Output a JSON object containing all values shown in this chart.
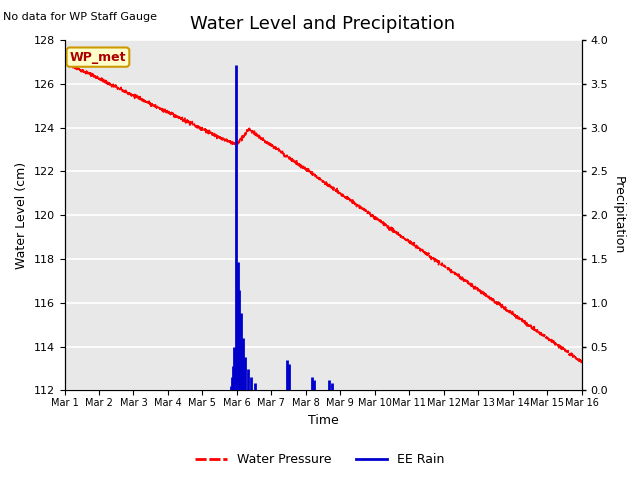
{
  "title": "Water Level and Precipitation",
  "subtitle": "No data for WP Staff Gauge",
  "xlabel": "Time",
  "ylabel_left": "Water Level (cm)",
  "ylabel_right": "Precipitation",
  "legend_label_box": "WP_met",
  "legend_label_red": "Water Pressure",
  "legend_label_blue": "EE Rain",
  "ylim_left": [
    112,
    128
  ],
  "ylim_right": [
    0.0,
    4.0
  ],
  "yticks_left": [
    112,
    114,
    116,
    118,
    120,
    122,
    124,
    126,
    128
  ],
  "yticks_right": [
    0.0,
    0.5,
    1.0,
    1.5,
    2.0,
    2.5,
    3.0,
    3.5,
    4.0
  ],
  "background_color": "#e8e8e8",
  "grid_color": "#ffffff",
  "water_pressure_color": "#ff0000",
  "rain_color": "#0000cc",
  "title_fontsize": 13,
  "label_fontsize": 9,
  "tick_fontsize": 8,
  "xtick_labels": [
    "Mar 1",
    "Mar 2",
    "Mar 3",
    "Mar 4",
    "Mar 5",
    "Mar 6",
    "Mar 7",
    "Mar 8",
    "Mar 9",
    "Mar 10",
    "Mar 11",
    "Mar 12",
    "Mar 13",
    "Mar 14",
    "Mar 15",
    "Mar 16"
  ],
  "rain_times": [
    4.82,
    4.87,
    4.9,
    4.93,
    4.97,
    5.03,
    5.07,
    5.12,
    5.18,
    5.25,
    5.33,
    5.42,
    5.52,
    6.45,
    6.52,
    7.18,
    7.25,
    7.68,
    7.75
  ],
  "rain_values": [
    0.05,
    0.15,
    0.28,
    0.5,
    3.72,
    1.47,
    1.15,
    0.88,
    0.6,
    0.38,
    0.25,
    0.15,
    0.08,
    0.35,
    0.3,
    0.15,
    0.12,
    0.12,
    0.08
  ]
}
